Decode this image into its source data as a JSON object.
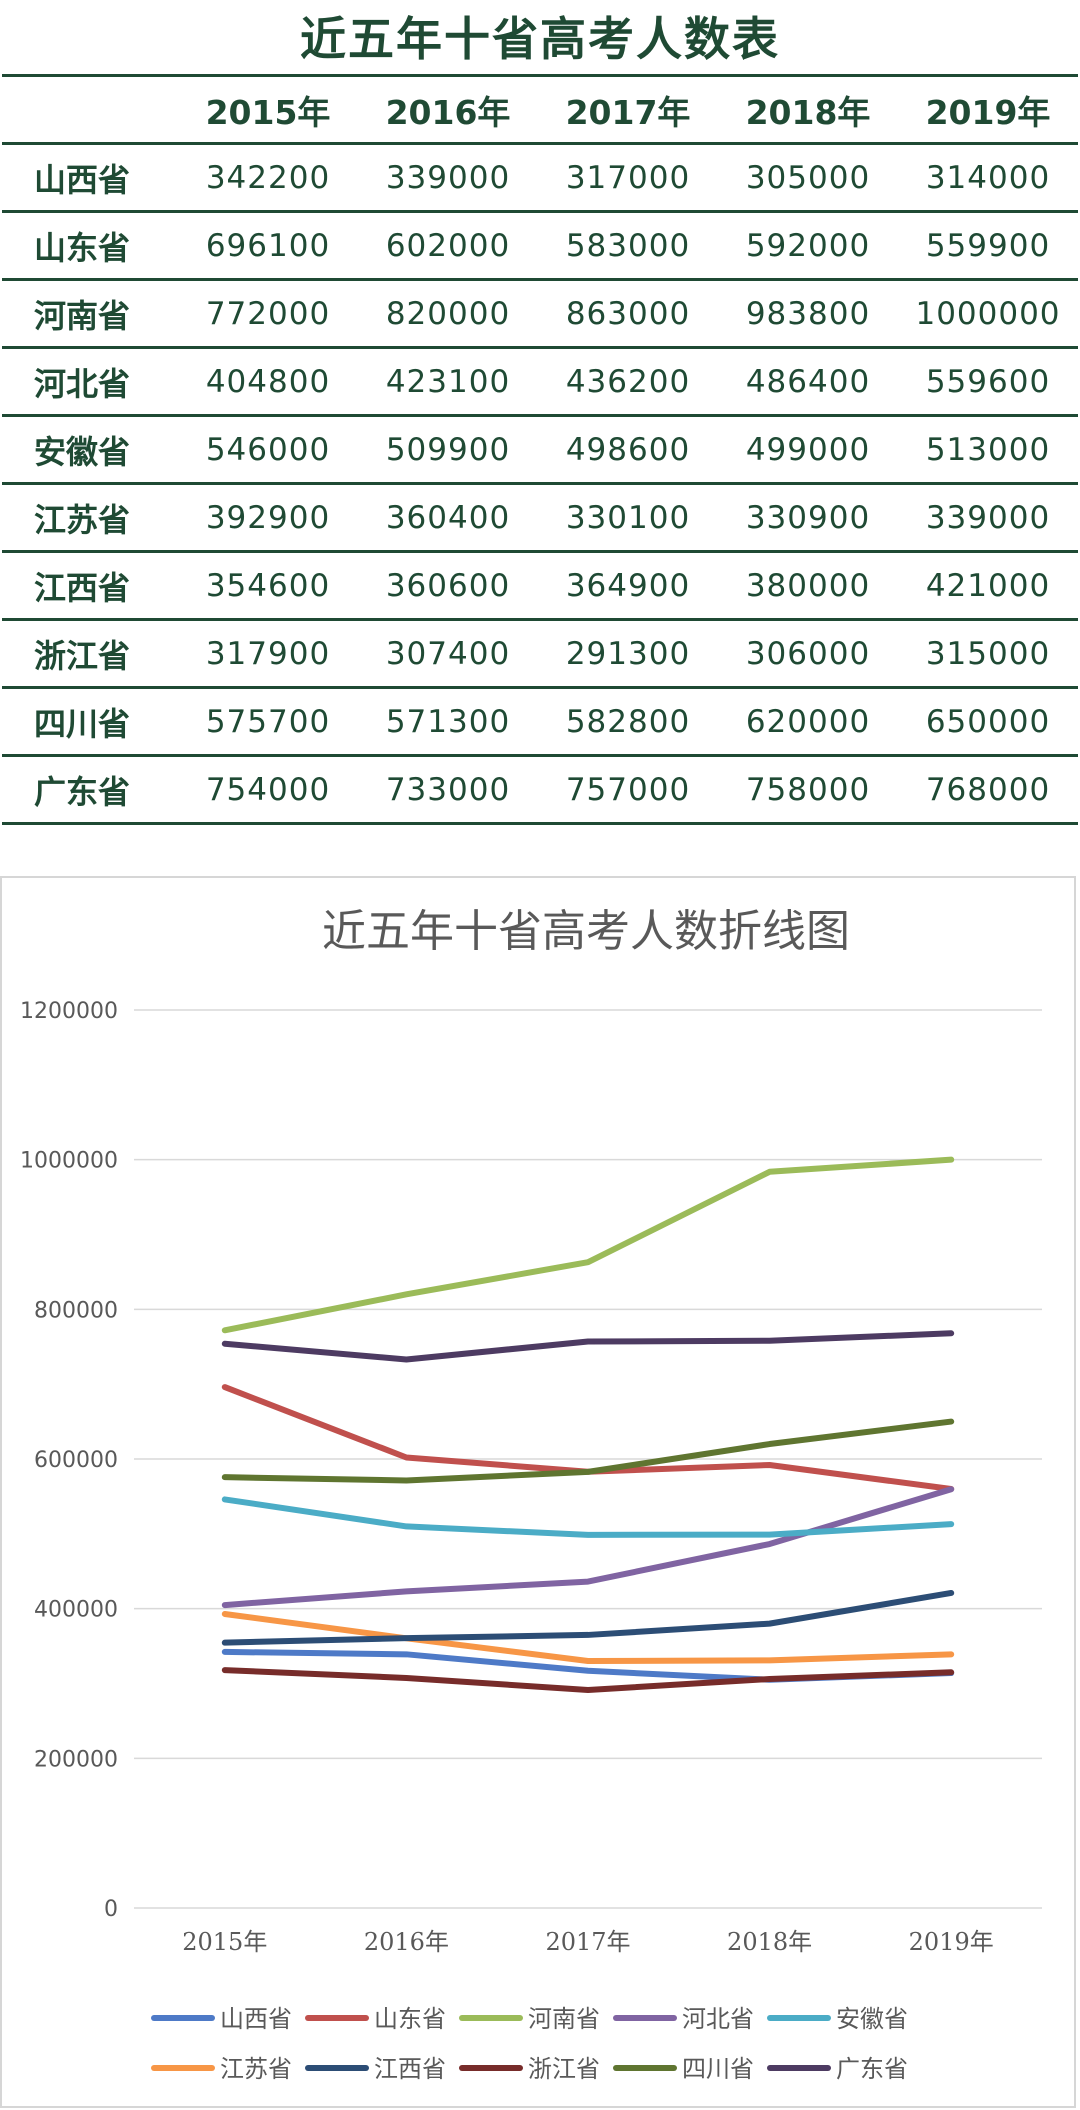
{
  "table": {
    "title": "近五年十省高考人数表",
    "header_blank": "",
    "years": [
      "2015年",
      "2016年",
      "2017年",
      "2018年",
      "2019年"
    ],
    "rows": [
      {
        "province": "山西省",
        "values": [
          "342200",
          "339000",
          "317000",
          "305000",
          "314000"
        ]
      },
      {
        "province": "山东省",
        "values": [
          "696100",
          "602000",
          "583000",
          "592000",
          "559900"
        ]
      },
      {
        "province": "河南省",
        "values": [
          "772000",
          "820000",
          "863000",
          "983800",
          "1000000"
        ]
      },
      {
        "province": "河北省",
        "values": [
          "404800",
          "423100",
          "436200",
          "486400",
          "559600"
        ]
      },
      {
        "province": "安徽省",
        "values": [
          "546000",
          "509900",
          "498600",
          "499000",
          "513000"
        ]
      },
      {
        "province": "江苏省",
        "values": [
          "392900",
          "360400",
          "330100",
          "330900",
          "339000"
        ]
      },
      {
        "province": "江西省",
        "values": [
          "354600",
          "360600",
          "364900",
          "380000",
          "421000"
        ]
      },
      {
        "province": "浙江省",
        "values": [
          "317900",
          "307400",
          "291300",
          "306000",
          "315000"
        ]
      },
      {
        "province": "四川省",
        "values": [
          "575700",
          "571300",
          "582800",
          "620000",
          "650000"
        ]
      },
      {
        "province": "广东省",
        "values": [
          "754000",
          "733000",
          "757000",
          "758000",
          "768000"
        ]
      }
    ]
  },
  "chart_data": {
    "type": "line",
    "title": "近五年十省高考人数折线图",
    "xlabel": "",
    "ylabel": "",
    "categories": [
      "2015年",
      "2016年",
      "2017年",
      "2018年",
      "2019年"
    ],
    "ylim": [
      0,
      1200000
    ],
    "yticks": [
      "0",
      "200000",
      "400000",
      "600000",
      "800000",
      "1000000",
      "1200000"
    ],
    "grid": true,
    "legend_position": "bottom",
    "series": [
      {
        "name": "山西省",
        "color": "#4e7ac7",
        "values": [
          342200,
          339000,
          317000,
          305000,
          314000
        ]
      },
      {
        "name": "山东省",
        "color": "#c0504d",
        "values": [
          696100,
          602000,
          583000,
          592000,
          559900
        ]
      },
      {
        "name": "河南省",
        "color": "#9bbb59",
        "values": [
          772000,
          820000,
          863000,
          983800,
          1000000
        ]
      },
      {
        "name": "河北省",
        "color": "#8064a2",
        "values": [
          404800,
          423100,
          436200,
          486400,
          559600
        ]
      },
      {
        "name": "安徽省",
        "color": "#4bacc6",
        "values": [
          546000,
          509900,
          498600,
          499000,
          513000
        ]
      },
      {
        "name": "江苏省",
        "color": "#f79646",
        "values": [
          392900,
          360400,
          330100,
          330900,
          339000
        ]
      },
      {
        "name": "江西省",
        "color": "#2c4d75",
        "values": [
          354600,
          360600,
          364900,
          380000,
          421000
        ]
      },
      {
        "name": "浙江省",
        "color": "#772c2a",
        "values": [
          317900,
          307400,
          291300,
          306000,
          315000
        ]
      },
      {
        "name": "四川省",
        "color": "#5f7530",
        "values": [
          575700,
          571300,
          582800,
          620000,
          650000
        ]
      },
      {
        "name": "广东省",
        "color": "#4d3b62",
        "values": [
          754000,
          733000,
          757000,
          758000,
          768000
        ]
      }
    ]
  }
}
